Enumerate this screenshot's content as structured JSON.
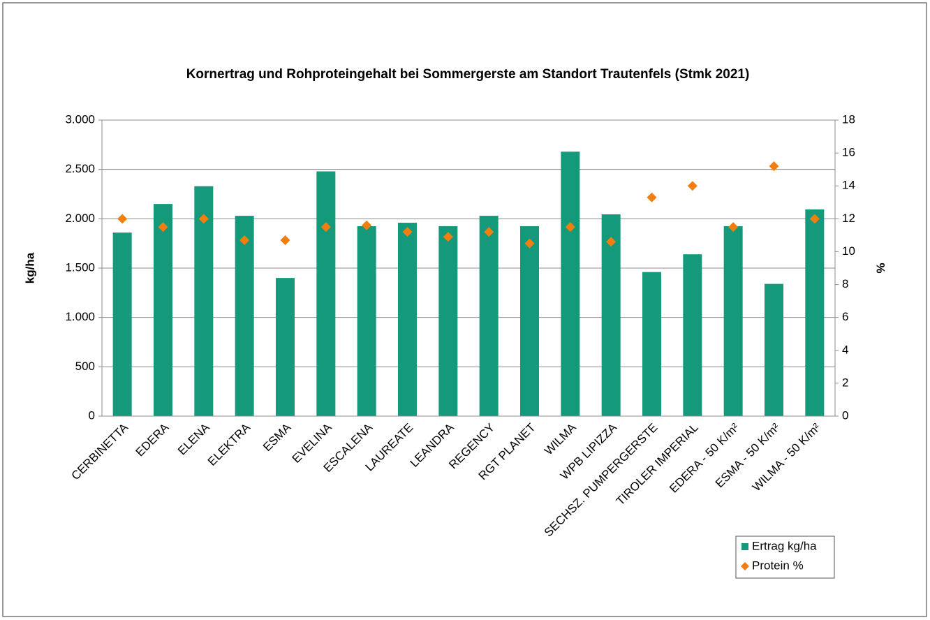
{
  "chart_data": {
    "type": "bar-scatter",
    "title": "Kornertrag und Rohproteingehalt bei Sommergerste am Standort Trautenfels (Stmk 2021)",
    "ylabel": "kg/ha",
    "y2label": "%",
    "categories": [
      "CERBINETTA",
      "EDERA",
      "ELENA",
      "ELEKTRA",
      "ESMA",
      "EVELINA",
      "ESCALENA",
      "LAUREATE",
      "LEANDRA",
      "REGENCY",
      "RGT PLANET",
      "WILMA",
      "WPB LIPIZZA",
      "SECHSZ. PUMPERGERSTE",
      "TIROLER IMPERIAL",
      "EDERA - 50 K/m²",
      "ESMA - 50 K/m²",
      "WILMA - 50 K/m²"
    ],
    "series": [
      {
        "name": "Ertrag kg/ha",
        "color": "#149a7b",
        "type": "bar",
        "axis": "y",
        "values": [
          1860,
          2150,
          2330,
          2030,
          1400,
          2480,
          1925,
          1960,
          1925,
          2030,
          1925,
          2680,
          2045,
          1460,
          1640,
          1925,
          1340,
          2095
        ]
      },
      {
        "name": "Protein %",
        "color": "#f07f10",
        "type": "scatter",
        "axis": "y2",
        "values": [
          12.0,
          11.5,
          12.0,
          10.7,
          10.7,
          11.5,
          11.6,
          11.2,
          10.9,
          11.2,
          10.5,
          11.5,
          10.6,
          13.3,
          14.0,
          11.5,
          15.2,
          12.0
        ]
      }
    ],
    "ylim": [
      0,
      3000
    ],
    "yticks": [
      0,
      500,
      {
        "value": 1000,
        "label": "1.000"
      },
      {
        "value": 1500,
        "label": "1.500"
      },
      {
        "value": 2000,
        "label": "2.000"
      },
      {
        "value": 2500,
        "label": "2.500"
      },
      {
        "value": 3000,
        "label": "3.000"
      }
    ],
    "y2lim": [
      0,
      18
    ],
    "y2ticks": [
      0,
      2,
      4,
      6,
      8,
      10,
      12,
      14,
      16,
      18
    ],
    "grid": true,
    "legend": "bottom-right"
  }
}
